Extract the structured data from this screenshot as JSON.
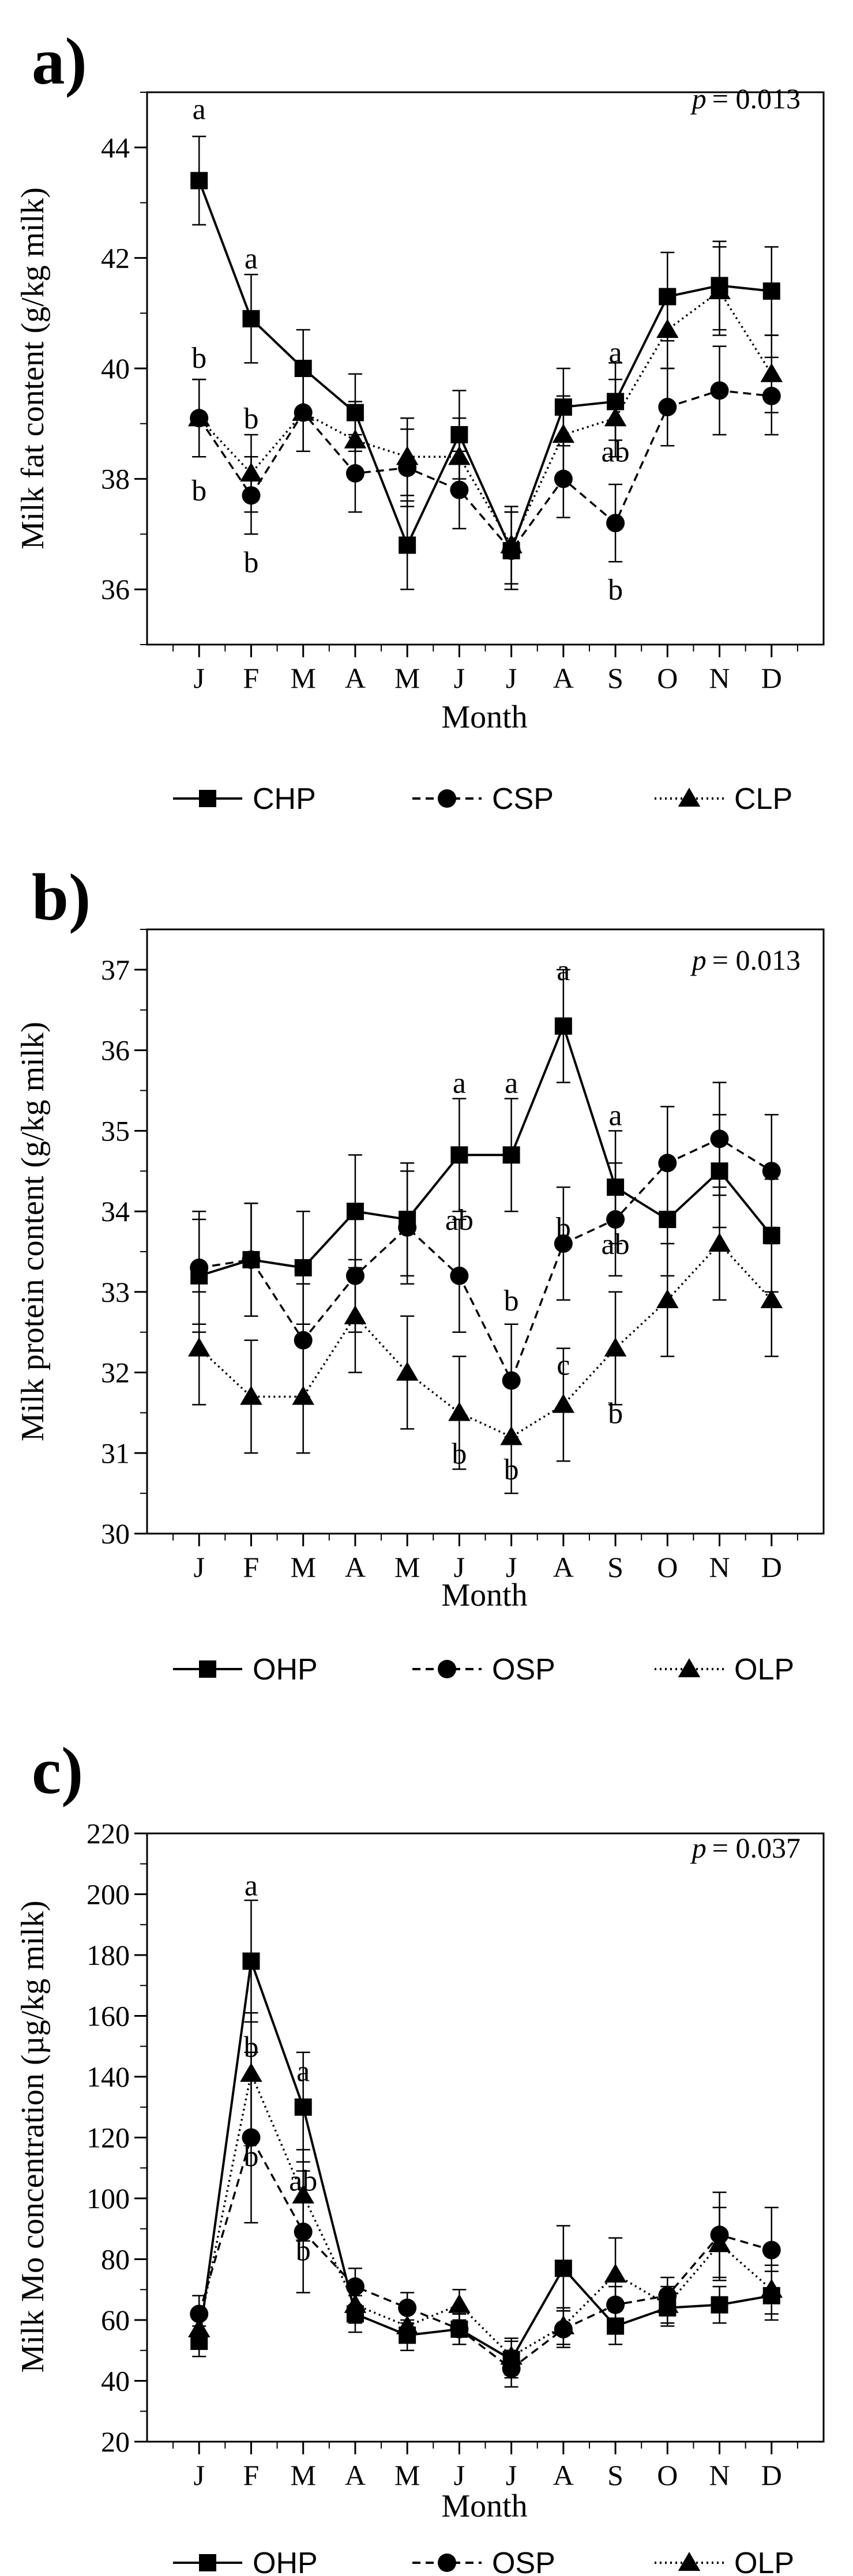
{
  "chart_data": [
    {
      "panel": "a)",
      "type": "line",
      "p_label": "p",
      "p_value": "= 0.013",
      "xlabel": "Month",
      "ylabel": "Milk fat content (g/kg milk)",
      "categories": [
        "J",
        "F",
        "M",
        "A",
        "M",
        "J",
        "J",
        "A",
        "S",
        "O",
        "N",
        "D"
      ],
      "ylim": [
        35,
        45
      ],
      "yticks": [
        36,
        38,
        40,
        42,
        44
      ],
      "series": [
        {
          "name": "CHP",
          "marker": "square",
          "line": "solid",
          "values": [
            43.4,
            40.9,
            40.0,
            39.2,
            36.8,
            38.8,
            36.7,
            39.3,
            39.4,
            41.3,
            41.5,
            41.4
          ],
          "errors": [
            0.8,
            0.8,
            0.7,
            0.7,
            0.8,
            0.8,
            0.7,
            0.7,
            0.7,
            0.8,
            0.8,
            0.8
          ]
        },
        {
          "name": "CSP",
          "marker": "circle",
          "line": "dashed",
          "values": [
            39.1,
            37.7,
            39.2,
            38.1,
            38.2,
            37.8,
            36.7,
            38.0,
            37.2,
            39.3,
            39.6,
            39.5
          ],
          "errors": [
            0.7,
            0.7,
            0.7,
            0.7,
            0.7,
            0.7,
            0.7,
            0.7,
            0.7,
            0.7,
            0.8,
            0.7
          ]
        },
        {
          "name": "CLP",
          "marker": "triangle",
          "line": "dotted",
          "values": [
            39.1,
            38.1,
            39.2,
            38.7,
            38.4,
            38.4,
            36.8,
            38.8,
            39.1,
            40.7,
            41.4,
            39.9
          ],
          "errors": [
            0.7,
            0.7,
            0.7,
            0.7,
            0.7,
            0.7,
            0.7,
            0.7,
            0.7,
            0.7,
            0.8,
            0.7
          ]
        }
      ],
      "annotations": [
        {
          "text": "a",
          "month": 1,
          "value": 44.7
        },
        {
          "text": "b",
          "month": 1,
          "value": 40.2
        },
        {
          "text": "b",
          "month": 1,
          "value": 37.8
        },
        {
          "text": "a",
          "month": 2,
          "value": 42.0
        },
        {
          "text": "b",
          "month": 2,
          "value": 39.1
        },
        {
          "text": "b",
          "month": 2,
          "value": 36.5
        },
        {
          "text": "a",
          "month": 9,
          "value": 40.3
        },
        {
          "text": "ab",
          "month": 9,
          "value": 38.5
        },
        {
          "text": "b",
          "month": 9,
          "value": 36.0
        }
      ]
    },
    {
      "panel": "b)",
      "type": "line",
      "p_label": "p",
      "p_value": "= 0.013",
      "xlabel": "Month",
      "ylabel": "Milk protein content (g/kg milk)",
      "categories": [
        "J",
        "F",
        "M",
        "A",
        "M",
        "J",
        "J",
        "A",
        "S",
        "O",
        "N",
        "D"
      ],
      "ylim": [
        30,
        37.5
      ],
      "yticks": [
        30,
        31,
        32,
        33,
        34,
        35,
        36,
        37
      ],
      "series": [
        {
          "name": "OHP",
          "marker": "square",
          "line": "solid",
          "values": [
            33.2,
            33.4,
            33.3,
            34.0,
            33.9,
            34.7,
            34.7,
            36.3,
            34.3,
            33.9,
            34.5,
            33.7
          ],
          "errors": [
            0.7,
            0.7,
            0.7,
            0.7,
            0.7,
            0.7,
            0.7,
            0.7,
            0.7,
            0.7,
            0.7,
            0.7
          ]
        },
        {
          "name": "OSP",
          "marker": "circle",
          "line": "dashed",
          "values": [
            33.3,
            33.4,
            32.4,
            33.2,
            33.8,
            33.2,
            31.9,
            33.6,
            33.9,
            34.6,
            34.9,
            34.5
          ],
          "errors": [
            0.7,
            0.7,
            0.7,
            0.7,
            0.7,
            0.7,
            0.7,
            0.7,
            0.7,
            0.7,
            0.7,
            0.7
          ]
        },
        {
          "name": "OLP",
          "marker": "triangle",
          "line": "dotted",
          "values": [
            32.3,
            31.7,
            31.7,
            32.7,
            32.0,
            31.5,
            31.2,
            31.6,
            32.3,
            32.9,
            33.6,
            32.9
          ],
          "errors": [
            0.7,
            0.7,
            0.7,
            0.7,
            0.7,
            0.7,
            0.7,
            0.7,
            0.7,
            0.7,
            0.7,
            0.7
          ]
        }
      ],
      "annotations": [
        {
          "text": "a",
          "month": 6,
          "value": 35.6
        },
        {
          "text": "ab",
          "month": 6,
          "value": 33.9
        },
        {
          "text": "b",
          "month": 6,
          "value": 31.0
        },
        {
          "text": "a",
          "month": 7,
          "value": 35.6
        },
        {
          "text": "b",
          "month": 7,
          "value": 32.9
        },
        {
          "text": "b",
          "month": 7,
          "value": 30.8
        },
        {
          "text": "a",
          "month": 8,
          "value": 37.0
        },
        {
          "text": "b",
          "month": 8,
          "value": 33.8
        },
        {
          "text": "c",
          "month": 8,
          "value": 32.1
        },
        {
          "text": "a",
          "month": 9,
          "value": 35.2
        },
        {
          "text": "ab",
          "month": 9,
          "value": 33.6
        },
        {
          "text": "b",
          "month": 9,
          "value": 31.5
        }
      ]
    },
    {
      "panel": "c)",
      "type": "line",
      "p_label": "p",
      "p_value": "= 0.037",
      "xlabel": "Month",
      "ylabel": "Milk Mo concentration (µg/kg milk)",
      "categories": [
        "J",
        "F",
        "M",
        "A",
        "M",
        "J",
        "J",
        "A",
        "S",
        "O",
        "N",
        "D"
      ],
      "ylim": [
        20,
        220
      ],
      "yticks": [
        20,
        40,
        60,
        80,
        100,
        120,
        140,
        160,
        180,
        200,
        220
      ],
      "series": [
        {
          "name": "OHP",
          "marker": "square",
          "line": "solid",
          "values": [
            53,
            178,
            130,
            62,
            55,
            57,
            47,
            77,
            58,
            64,
            65,
            68
          ],
          "errors": [
            5,
            20,
            18,
            6,
            5,
            5,
            6,
            14,
            6,
            6,
            6,
            8
          ]
        },
        {
          "name": "OSP",
          "marker": "circle",
          "line": "dashed",
          "values": [
            62,
            120,
            89,
            71,
            64,
            57,
            44,
            57,
            65,
            68,
            88,
            83
          ],
          "errors": [
            6,
            28,
            20,
            6,
            5,
            5,
            6,
            6,
            6,
            6,
            14,
            14
          ]
        },
        {
          "name": "OLP",
          "marker": "triangle",
          "line": "dotted",
          "values": [
            57,
            141,
            101,
            65,
            58,
            65,
            48,
            58,
            75,
            65,
            85,
            70
          ],
          "errors": [
            6,
            20,
            15,
            6,
            5,
            5,
            6,
            6,
            12,
            6,
            12,
            8
          ]
        }
      ],
      "annotations": [
        {
          "text": "a",
          "month": 2,
          "value": 203
        },
        {
          "text": "b",
          "month": 2,
          "value": 150
        },
        {
          "text": "b",
          "month": 2,
          "value": 114
        },
        {
          "text": "a",
          "month": 3,
          "value": 142
        },
        {
          "text": "ab",
          "month": 3,
          "value": 106
        },
        {
          "text": "b",
          "month": 3,
          "value": 83
        }
      ]
    }
  ]
}
